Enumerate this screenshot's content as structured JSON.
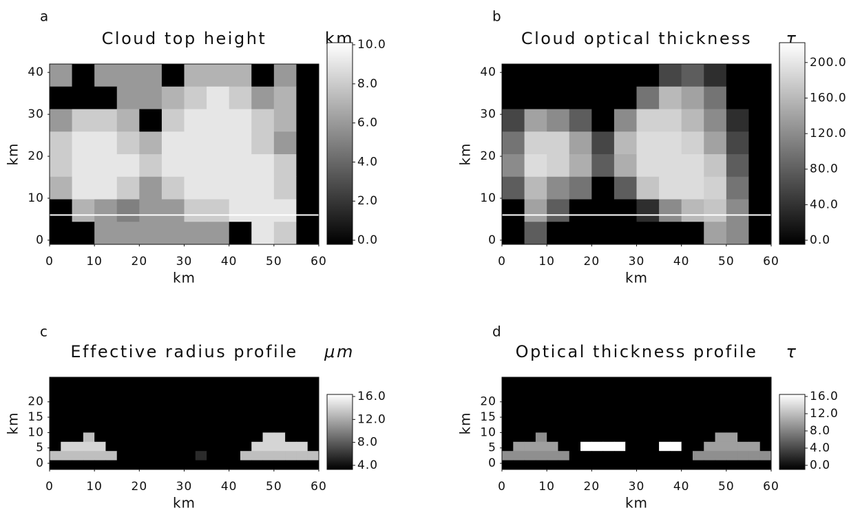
{
  "chart_data": [
    {
      "type": "heatmap",
      "label": "a",
      "title": "Cloud top height",
      "colorbar_label": "km",
      "xlabel": "km",
      "ylabel": "km",
      "xlim": [
        0,
        60
      ],
      "ylim": [
        -1,
        42
      ],
      "xticks": [
        0,
        10,
        20,
        30,
        40,
        50,
        60
      ],
      "yticks": [
        0,
        10,
        20,
        30,
        40
      ],
      "line_y": 6,
      "clim": [
        0,
        10
      ],
      "cticks": [
        {
          "value": 0,
          "label": "0.0"
        },
        {
          "value": 2,
          "label": "2.0"
        },
        {
          "value": 4,
          "label": "4.0"
        },
        {
          "value": 6,
          "label": "6.0"
        },
        {
          "value": 8,
          "label": "8.0"
        },
        {
          "value": 10,
          "label": "10.0"
        }
      ],
      "z": [
        [
          6,
          0,
          6,
          6,
          6,
          0,
          7,
          7,
          7,
          0,
          6,
          0
        ],
        [
          0,
          0,
          0,
          6,
          6,
          7,
          8,
          9,
          8,
          6,
          7,
          0
        ],
        [
          6,
          8,
          8,
          7,
          0,
          8,
          9,
          9,
          9,
          8,
          7,
          0
        ],
        [
          8,
          9,
          9,
          8,
          7,
          9,
          9,
          9,
          9,
          8,
          6,
          0
        ],
        [
          8,
          9,
          9,
          9,
          8,
          9,
          9,
          9,
          9,
          9,
          8,
          0
        ],
        [
          7,
          9,
          9,
          8,
          6,
          8,
          9,
          9,
          9,
          9,
          8,
          0
        ],
        [
          0,
          7,
          6,
          5,
          6,
          6,
          8,
          8,
          9,
          9,
          9,
          0
        ],
        [
          0,
          0,
          6,
          6,
          6,
          6,
          6,
          6,
          0,
          9,
          8,
          0
        ]
      ]
    },
    {
      "type": "heatmap",
      "label": "b",
      "title": "Cloud optical thickness",
      "colorbar_label": "τ",
      "xlabel": "km",
      "ylabel": "km",
      "xlim": [
        0,
        60
      ],
      "ylim": [
        -1,
        42
      ],
      "xticks": [
        0,
        10,
        20,
        30,
        40,
        50,
        60
      ],
      "yticks": [
        0,
        10,
        20,
        30,
        40
      ],
      "line_y": 6,
      "clim": [
        0,
        220
      ],
      "cticks": [
        {
          "value": 0,
          "label": "0.0"
        },
        {
          "value": 40,
          "label": "40.0"
        },
        {
          "value": 80,
          "label": "80.0"
        },
        {
          "value": 120,
          "label": "120.0"
        },
        {
          "value": 160,
          "label": "160.0"
        },
        {
          "value": 200,
          "label": "200.0"
        }
      ],
      "z": [
        [
          0,
          0,
          0,
          0,
          0,
          0,
          0,
          60,
          80,
          40,
          0,
          0
        ],
        [
          0,
          0,
          0,
          0,
          0,
          0,
          100,
          160,
          140,
          100,
          0,
          0
        ],
        [
          60,
          140,
          120,
          80,
          0,
          120,
          180,
          180,
          160,
          120,
          40,
          0
        ],
        [
          100,
          180,
          180,
          140,
          60,
          160,
          190,
          190,
          180,
          140,
          60,
          0
        ],
        [
          120,
          190,
          180,
          150,
          80,
          150,
          190,
          190,
          190,
          170,
          80,
          0
        ],
        [
          80,
          160,
          120,
          100,
          0,
          80,
          170,
          190,
          190,
          180,
          100,
          0
        ],
        [
          0,
          140,
          80,
          0,
          0,
          0,
          40,
          120,
          160,
          170,
          120,
          0
        ],
        [
          0,
          80,
          0,
          0,
          0,
          0,
          0,
          0,
          0,
          140,
          120,
          0
        ]
      ]
    },
    {
      "type": "heatmap",
      "label": "c",
      "title": "Effective radius profile",
      "colorbar_label": "μm",
      "xlabel": "km",
      "ylabel": "km",
      "xlim": [
        0,
        60
      ],
      "ylim": [
        -2,
        28
      ],
      "xticks": [
        0,
        10,
        20,
        30,
        40,
        50,
        60
      ],
      "yticks": [
        0,
        5,
        10,
        15,
        20
      ],
      "clim": [
        4,
        16
      ],
      "cticks": [
        {
          "value": 4,
          "label": "4.0"
        },
        {
          "value": 8,
          "label": "8.0"
        },
        {
          "value": 12,
          "label": "12.0"
        },
        {
          "value": 16,
          "label": "16.0"
        }
      ],
      "z": [
        [
          4,
          4,
          4,
          4,
          4,
          4,
          4,
          4,
          4,
          4,
          4,
          4,
          4,
          4,
          4,
          4,
          4,
          4,
          4,
          4,
          4,
          4,
          4,
          4
        ],
        [
          4,
          4,
          4,
          4,
          4,
          4,
          4,
          4,
          4,
          4,
          4,
          4,
          4,
          4,
          4,
          4,
          4,
          4,
          4,
          4,
          4,
          4,
          4,
          4
        ],
        [
          4,
          4,
          4,
          4,
          4,
          4,
          4,
          4,
          4,
          4,
          4,
          4,
          4,
          4,
          4,
          4,
          4,
          4,
          4,
          4,
          4,
          4,
          4,
          4
        ],
        [
          4,
          4,
          4,
          4,
          4,
          4,
          4,
          4,
          4,
          4,
          4,
          4,
          4,
          4,
          4,
          4,
          4,
          4,
          4,
          4,
          4,
          4,
          4,
          4
        ],
        [
          4,
          4,
          4,
          4,
          4,
          4,
          4,
          4,
          4,
          4,
          4,
          4,
          4,
          4,
          4,
          4,
          4,
          4,
          4,
          4,
          4,
          4,
          4,
          4
        ],
        [
          4,
          4,
          4,
          4,
          4,
          4,
          4,
          4,
          4,
          4,
          4,
          4,
          4,
          4,
          4,
          4,
          4,
          4,
          4,
          4,
          4,
          4,
          4,
          4
        ],
        [
          4,
          4,
          4,
          13,
          4,
          4,
          4,
          4,
          4,
          4,
          4,
          4,
          4,
          4,
          4,
          4,
          4,
          4,
          4,
          14,
          14,
          4,
          4,
          4
        ],
        [
          4,
          14,
          14,
          14,
          14,
          4,
          4,
          4,
          4,
          4,
          4,
          4,
          4,
          4,
          4,
          4,
          4,
          4,
          14,
          14,
          14,
          14,
          14,
          4
        ],
        [
          13,
          13,
          13,
          13,
          13,
          13,
          4,
          4,
          4,
          4,
          4,
          4,
          4,
          6,
          4,
          4,
          4,
          13,
          13,
          13,
          13,
          13,
          13,
          13
        ],
        [
          4,
          4,
          4,
          4,
          4,
          4,
          4,
          4,
          4,
          4,
          4,
          4,
          4,
          4,
          4,
          4,
          4,
          4,
          4,
          4,
          4,
          4,
          4,
          4
        ]
      ]
    },
    {
      "type": "heatmap",
      "label": "d",
      "title": "Optical thickness profile",
      "colorbar_label": "τ",
      "xlabel": "km",
      "ylabel": "km",
      "xlim": [
        0,
        60
      ],
      "ylim": [
        -2,
        28
      ],
      "xticks": [
        0,
        10,
        20,
        30,
        40,
        50,
        60
      ],
      "yticks": [
        0,
        5,
        10,
        15,
        20
      ],
      "clim": [
        0,
        16
      ],
      "cticks": [
        {
          "value": 0,
          "label": "0.0"
        },
        {
          "value": 4,
          "label": "4.0"
        },
        {
          "value": 8,
          "label": "8.0"
        },
        {
          "value": 12,
          "label": "12.0"
        },
        {
          "value": 16,
          "label": "16.0"
        }
      ],
      "z": [
        [
          0,
          0,
          0,
          0,
          0,
          0,
          0,
          0,
          0,
          0,
          0,
          0,
          0,
          0,
          0,
          0,
          0,
          0,
          0,
          0,
          0,
          0,
          0,
          0
        ],
        [
          0,
          0,
          0,
          0,
          0,
          0,
          0,
          0,
          0,
          0,
          0,
          0,
          0,
          0,
          0,
          0,
          0,
          0,
          0,
          0,
          0,
          0,
          0,
          0
        ],
        [
          0,
          0,
          0,
          0,
          0,
          0,
          0,
          0,
          0,
          0,
          0,
          0,
          0,
          0,
          0,
          0,
          0,
          0,
          0,
          0,
          0,
          0,
          0,
          0
        ],
        [
          0,
          0,
          0,
          0,
          0,
          0,
          0,
          0,
          0,
          0,
          0,
          0,
          0,
          0,
          0,
          0,
          0,
          0,
          0,
          0,
          0,
          0,
          0,
          0
        ],
        [
          0,
          0,
          0,
          0,
          0,
          0,
          0,
          0,
          0,
          0,
          0,
          0,
          0,
          0,
          0,
          0,
          0,
          0,
          0,
          0,
          0,
          0,
          0,
          0
        ],
        [
          0,
          0,
          0,
          0,
          0,
          0,
          0,
          0,
          0,
          0,
          0,
          0,
          0,
          0,
          0,
          0,
          0,
          0,
          0,
          0,
          0,
          0,
          0,
          0
        ],
        [
          0,
          0,
          0,
          9,
          0,
          0,
          0,
          0,
          0,
          0,
          0,
          0,
          0,
          0,
          0,
          0,
          0,
          0,
          0,
          10,
          10,
          0,
          0,
          0
        ],
        [
          0,
          10,
          10,
          10,
          10,
          0,
          0,
          16,
          16,
          16,
          16,
          0,
          0,
          0,
          16,
          16,
          0,
          0,
          10,
          10,
          10,
          10,
          10,
          0
        ],
        [
          9,
          9,
          9,
          9,
          9,
          9,
          0,
          0,
          0,
          0,
          0,
          0,
          0,
          0,
          0,
          0,
          0,
          9,
          9,
          9,
          9,
          9,
          9,
          9
        ],
        [
          0,
          0,
          0,
          0,
          0,
          0,
          0,
          0,
          0,
          0,
          0,
          0,
          0,
          0,
          0,
          0,
          0,
          0,
          0,
          0,
          0,
          0,
          0,
          0
        ]
      ]
    }
  ]
}
